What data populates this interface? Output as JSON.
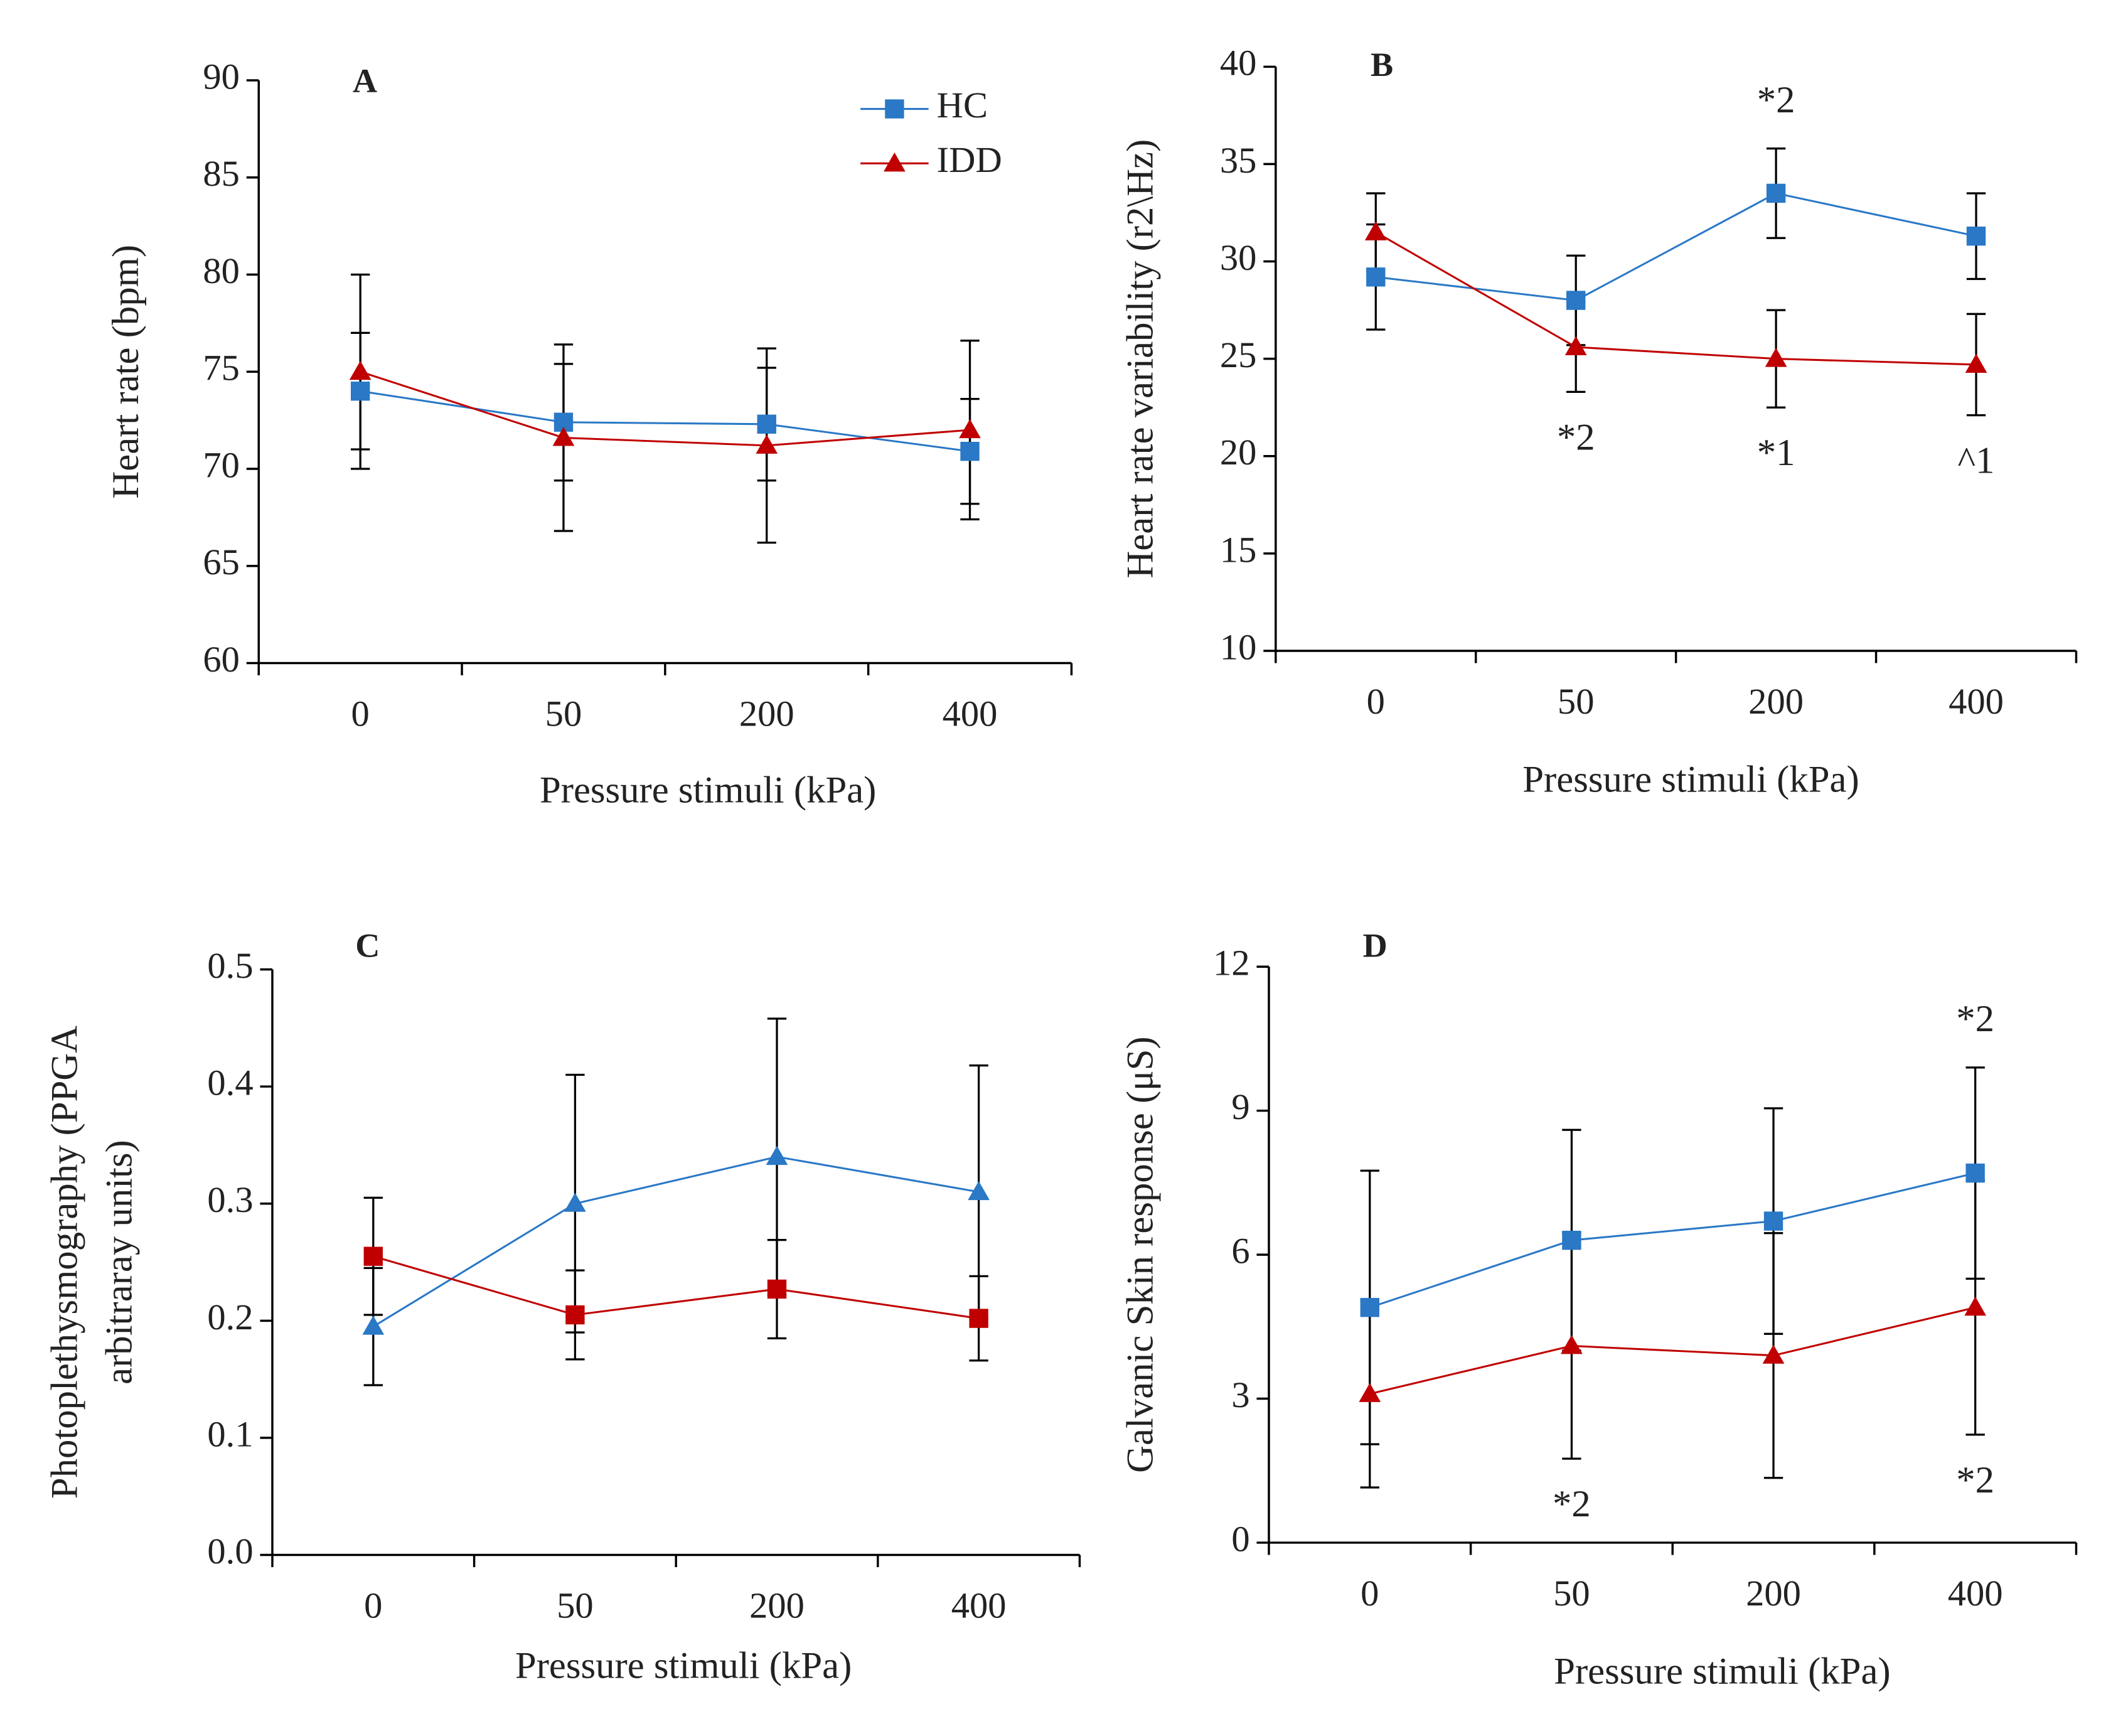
{
  "chart_data": [
    {
      "type": "line",
      "panel_label": "A",
      "xlabel": "Pressure stimuli (kPa)",
      "ylabel": "Heart rate (bpm)",
      "categories": [
        "0",
        "50",
        "200",
        "400"
      ],
      "ylim": [
        60,
        90
      ],
      "yticks": [
        60,
        65,
        70,
        75,
        80,
        85,
        90
      ],
      "legend": "top-right",
      "series": [
        {
          "name": "HC",
          "color": "#2a78c6",
          "marker": "square",
          "values": [
            74,
            72.4,
            72.3,
            70.9
          ],
          "errors": [
            3,
            3,
            2.9,
            2.7
          ]
        },
        {
          "name": "IDD",
          "color": "#c00000",
          "marker": "triangle",
          "values": [
            75,
            71.6,
            71.2,
            72
          ],
          "errors": [
            5,
            4.8,
            5,
            4.6
          ]
        }
      ]
    },
    {
      "type": "line",
      "panel_label": "B",
      "xlabel": "Pressure stimuli (kPa)",
      "ylabel": "Heart rate variability (r2\\Hz)",
      "categories": [
        "0",
        "50",
        "200",
        "400"
      ],
      "ylim": [
        10,
        40
      ],
      "yticks": [
        10,
        15,
        20,
        25,
        30,
        35,
        40
      ],
      "series": [
        {
          "name": "HC",
          "color": "#2a78c6",
          "marker": "square",
          "values": [
            29.2,
            28,
            33.5,
            31.3
          ],
          "errors": [
            2.7,
            2.3,
            2.3,
            2.2
          ]
        },
        {
          "name": "IDD",
          "color": "#c00000",
          "marker": "triangle",
          "values": [
            31.5,
            25.6,
            25,
            24.7
          ],
          "errors": [
            2,
            2.3,
            2.5,
            2.6
          ]
        }
      ],
      "annotations": [
        {
          "text": "*2",
          "category": "200",
          "position": "above"
        },
        {
          "text": "*2",
          "category": "50",
          "position": "below"
        },
        {
          "text": "*1",
          "category": "200",
          "position": "below"
        },
        {
          "text": "^1",
          "category": "400",
          "position": "below"
        }
      ]
    },
    {
      "type": "line",
      "panel_label": "C",
      "xlabel": "Pressure stimuli (kPa)",
      "ylabel": [
        "Photoplethysmography (PPGA",
        "arbitraray units)"
      ],
      "categories": [
        "0",
        "50",
        "200",
        "400"
      ],
      "ylim": [
        0,
        0.5
      ],
      "yticks": [
        {
          "value": 0,
          "label": "0.0"
        },
        0.1,
        0.2,
        0.3,
        0.4,
        0.5
      ],
      "series": [
        {
          "name": "HC",
          "color": "#2a78c6",
          "marker": "triangle",
          "values": [
            0.195,
            0.3,
            0.34,
            0.31
          ],
          "errors": [
            0.05,
            0.11,
            0.118,
            0.108
          ]
        },
        {
          "name": "IDD",
          "color": "#c00000",
          "marker": "square",
          "values": [
            0.255,
            0.205,
            0.227,
            0.202
          ],
          "errors": [
            0.05,
            0.038,
            0.042,
            0.036
          ]
        }
      ]
    },
    {
      "type": "line",
      "panel_label": "D",
      "xlabel": "Pressure stimuli (kPa)",
      "ylabel": "Galvanic Skin response (μS)",
      "categories": [
        "0",
        "50",
        "200",
        "400"
      ],
      "ylim": [
        0,
        12
      ],
      "yticks": [
        0,
        3,
        6,
        9,
        12
      ],
      "series": [
        {
          "name": "HC",
          "color": "#2a78c6",
          "marker": "square",
          "values": [
            4.9,
            6.3,
            6.7,
            7.7
          ],
          "errors": [
            2.85,
            2.3,
            2.35,
            2.2
          ]
        },
        {
          "name": "IDD",
          "color": "#c00000",
          "marker": "triangle",
          "values": [
            3.1,
            4.1,
            3.9,
            4.9
          ],
          "errors": [
            1.95,
            2.35,
            2.55,
            2.65
          ]
        }
      ],
      "annotations": [
        {
          "text": "*2",
          "category": "400",
          "position": "above"
        },
        {
          "text": "*2",
          "category": "50",
          "position": "below"
        },
        {
          "text": "*2",
          "category": "400",
          "position": "below"
        }
      ]
    }
  ]
}
